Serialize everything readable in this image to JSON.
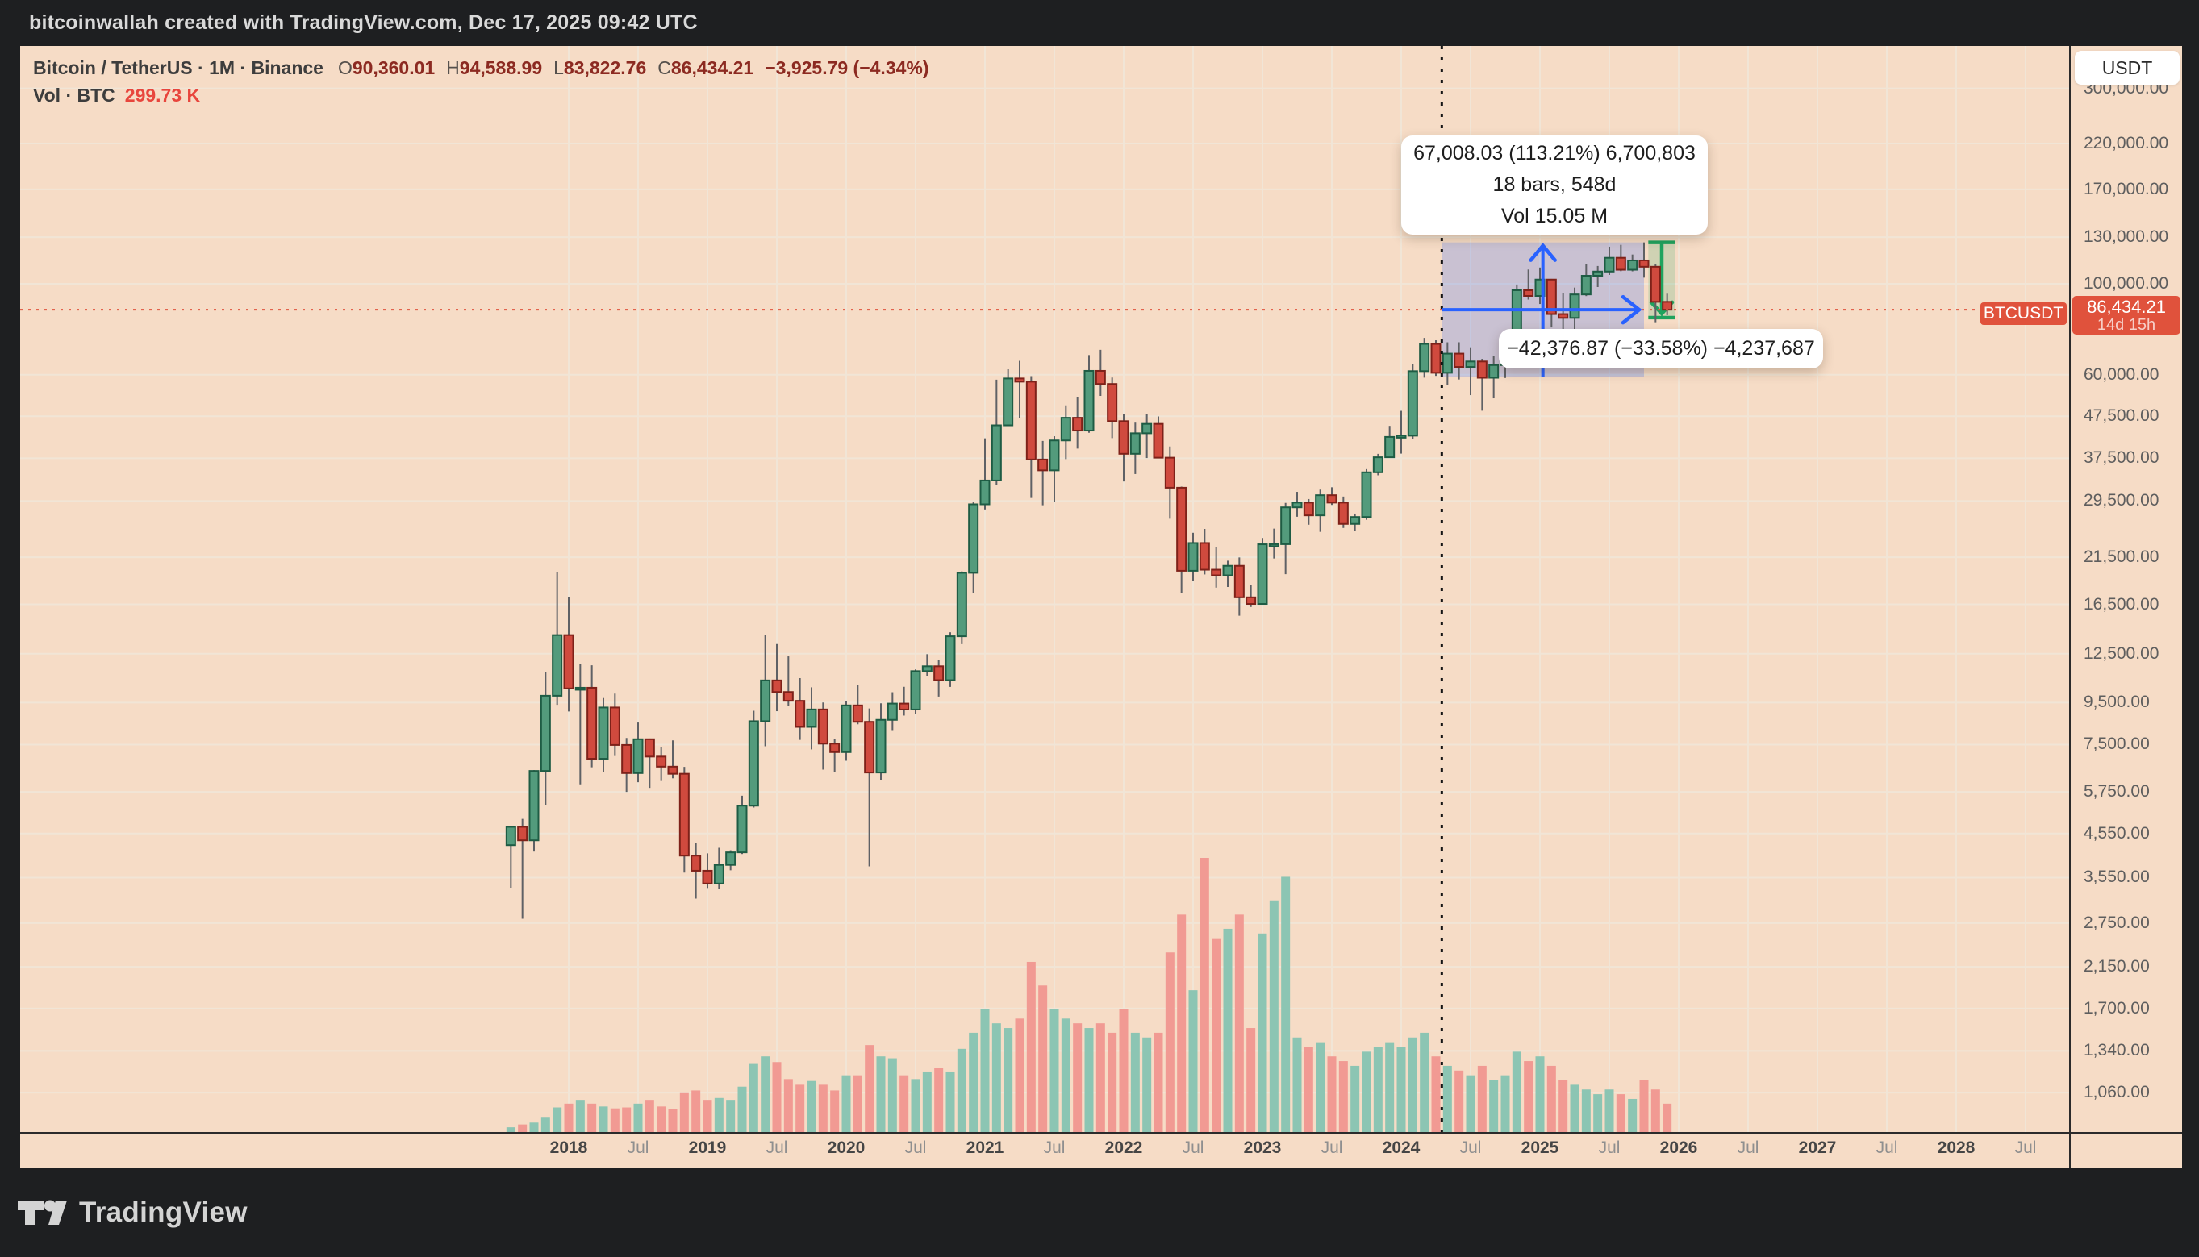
{
  "top_bar": {
    "text": "bitcoinwallah created with TradingView.com, Dec 17, 2025 09:42 UTC"
  },
  "header": {
    "symbol": "Bitcoin / TetherUS · 1M · Binance",
    "ohlc": [
      [
        "O",
        "90,360.01"
      ],
      [
        "H",
        "94,588.99"
      ],
      [
        "L",
        "83,822.76"
      ],
      [
        "C",
        "86,434.21"
      ]
    ],
    "change": "−3,925.79 (−4.34%)",
    "vol_label": "Vol · BTC",
    "vol_value": "299.73 K"
  },
  "tooltips": {
    "range_up": {
      "line1": "67,008.03 (113.21%) 6,700,803",
      "line2": "18 bars, 548d",
      "line3": "Vol 15.05 M"
    },
    "range_down": {
      "line1": "−42,376.87 (−33.58%) −4,237,687"
    }
  },
  "price_scale": {
    "currency": "USDT",
    "ticks": [
      "300,000.00",
      "220,000.00",
      "170,000.00",
      "130,000.00",
      "100,000.00",
      "60,000.00",
      "47,500.00",
      "37,500.00",
      "29,500.00",
      "21,500.00",
      "16,500.00",
      "12,500.00",
      "9,500.00",
      "7,500.00",
      "5,750.00",
      "4,550.00",
      "3,550.00",
      "2,750.00",
      "2,150.00",
      "1,700.00",
      "1,340.00",
      "1,060.00"
    ],
    "tick_values": [
      300000,
      220000,
      170000,
      130000,
      100000,
      60000,
      47500,
      37500,
      29500,
      21500,
      16500,
      12500,
      9500,
      7500,
      5750,
      4550,
      3550,
      2750,
      2150,
      1700,
      1340,
      1060
    ],
    "badge": {
      "price": "86,434.21",
      "countdown": "14d 15h"
    }
  },
  "price_line": {
    "symbol_badge": "BTCUSDT",
    "value": 86434.21
  },
  "time_axis": {
    "years": [
      2018,
      2019,
      2020,
      2021,
      2022,
      2023,
      2024,
      2025,
      2026,
      2027,
      2028
    ],
    "mid_label": "Jul"
  },
  "footer": {
    "brand": "TradingView"
  },
  "colors": {
    "background": "#f6dcc6",
    "frame": "#1e1f21",
    "grid": "#f1e5d6",
    "candle_up": "#539b7c",
    "candle_up_border": "#1e5c44",
    "candle_down": "#d04a3e",
    "candle_down_border": "#7e2119",
    "wick": "#5f6165",
    "vol_up": "#8cc5b3",
    "vol_down": "#f19a93",
    "price_line": "#e0523c",
    "measure_blue": "#2962ff",
    "measure_green": "#1fa35e",
    "dotted_line": "#141414",
    "separator": "#2b2b2b",
    "axis_text": "#5e5e5e"
  },
  "drawings": {
    "date_price_range": {
      "price_from": 59191,
      "price_to": 126199,
      "from_x_month": "2024-05",
      "to_x_month": "2025-10"
    },
    "price_range": {
      "price_from": 126199,
      "price_to": 83823,
      "over_months": [
        "2025-11",
        "2025-12"
      ]
    },
    "vertical_dotted_line_month": "2024-05"
  },
  "chart_data": {
    "type": "candlestick",
    "title": "Bitcoin / TetherUS · 1M · Binance",
    "symbol": "BTCUSDT",
    "interval": "1M",
    "exchange": "Binance",
    "log_scale": true,
    "ylabel": "Price (USDT)",
    "ylim_log": [
      980,
      330000
    ],
    "x_range": [
      "2017-08",
      "2028-12"
    ],
    "volume_unit": "thousand BTC",
    "volume_max_scale": 2900,
    "columns": [
      "month",
      "open",
      "high",
      "low",
      "close",
      "volume_kBTC"
    ],
    "candles": [
      [
        "2017-08",
        4261,
        4745,
        3355,
        4724,
        50
      ],
      [
        "2017-09",
        4724,
        4939,
        2817,
        4378,
        80
      ],
      [
        "2017-10",
        4378,
        6498,
        4110,
        6468,
        100
      ],
      [
        "2017-11",
        6468,
        11300,
        5325,
        9870,
        160
      ],
      [
        "2017-12",
        9870,
        19798,
        9380,
        13880,
        260
      ],
      [
        "2018-01",
        13880,
        17176,
        9035,
        10285,
        300
      ],
      [
        "2018-02",
        10285,
        11786,
        6000,
        10325,
        340
      ],
      [
        "2018-03",
        10325,
        11710,
        6600,
        6926,
        300
      ],
      [
        "2018-04",
        6926,
        9745,
        6430,
        9240,
        270
      ],
      [
        "2018-05",
        9240,
        9990,
        7032,
        7485,
        250
      ],
      [
        "2018-06",
        7485,
        7786,
        5750,
        6390,
        260
      ],
      [
        "2018-07",
        6390,
        8491,
        6070,
        7730,
        300
      ],
      [
        "2018-08",
        7730,
        7760,
        5880,
        7011,
        340
      ],
      [
        "2018-09",
        7011,
        7410,
        6111,
        6625,
        270
      ],
      [
        "2018-10",
        6625,
        7680,
        6205,
        6365,
        240
      ],
      [
        "2018-11",
        6365,
        6615,
        3652,
        4017,
        420
      ],
      [
        "2018-12",
        4017,
        4312,
        3156,
        3690,
        440
      ],
      [
        "2019-01",
        3690,
        4069,
        3349,
        3434,
        340
      ],
      [
        "2019-02",
        3434,
        4198,
        3331,
        3813,
        360
      ],
      [
        "2019-03",
        3813,
        4140,
        3700,
        4092,
        340
      ],
      [
        "2019-04",
        4092,
        5627,
        4054,
        5320,
        480
      ],
      [
        "2019-05",
        5320,
        9074,
        5266,
        8555,
        720
      ],
      [
        "2019-06",
        8555,
        13880,
        7430,
        10760,
        800
      ],
      [
        "2019-07",
        10760,
        13200,
        9049,
        10080,
        740
      ],
      [
        "2019-08",
        10080,
        12316,
        9320,
        9594,
        560
      ],
      [
        "2019-09",
        9594,
        10898,
        7700,
        8285,
        500
      ],
      [
        "2019-10",
        8285,
        10350,
        7300,
        9140,
        540
      ],
      [
        "2019-11",
        9140,
        9505,
        6515,
        7540,
        500
      ],
      [
        "2019-12",
        7540,
        7743,
        6425,
        7190,
        440
      ],
      [
        "2020-01",
        7190,
        9578,
        6850,
        9350,
        600
      ],
      [
        "2020-02",
        9350,
        10500,
        8407,
        8525,
        600
      ],
      [
        "2020-03",
        8525,
        9188,
        3782,
        6410,
        920
      ],
      [
        "2020-04",
        6410,
        9460,
        6153,
        8620,
        800
      ],
      [
        "2020-05",
        8620,
        10067,
        8100,
        9445,
        780
      ],
      [
        "2020-06",
        9445,
        10380,
        8830,
        9135,
        600
      ],
      [
        "2020-07",
        9135,
        11444,
        8900,
        11335,
        560
      ],
      [
        "2020-08",
        11335,
        12468,
        11010,
        11650,
        640
      ],
      [
        "2020-09",
        11650,
        12050,
        9825,
        10775,
        680
      ],
      [
        "2020-10",
        10775,
        14100,
        10374,
        13790,
        640
      ],
      [
        "2020-11",
        13790,
        19863,
        13195,
        19700,
        880
      ],
      [
        "2020-12",
        19700,
        29300,
        17572,
        28950,
        1050
      ],
      [
        "2021-01",
        28950,
        41950,
        28130,
        33100,
        1300
      ],
      [
        "2021-02",
        33100,
        58352,
        32296,
        45135,
        1150
      ],
      [
        "2021-03",
        45135,
        61844,
        44950,
        58740,
        1100
      ],
      [
        "2021-04",
        58740,
        64854,
        46930,
        57690,
        1200
      ],
      [
        "2021-05",
        57690,
        59500,
        30000,
        37250,
        1800
      ],
      [
        "2021-06",
        37250,
        41330,
        28805,
        35040,
        1550
      ],
      [
        "2021-07",
        35040,
        42448,
        29278,
        41460,
        1300
      ],
      [
        "2021-08",
        41460,
        50500,
        37332,
        47100,
        1200
      ],
      [
        "2021-09",
        47100,
        52920,
        39600,
        43820,
        1150
      ],
      [
        "2021-10",
        43820,
        67000,
        43283,
        61300,
        1100
      ],
      [
        "2021-11",
        61300,
        69000,
        53256,
        56950,
        1150
      ],
      [
        "2021-12",
        56950,
        59053,
        42000,
        46210,
        1050
      ],
      [
        "2022-01",
        46210,
        47990,
        32917,
        38460,
        1300
      ],
      [
        "2022-02",
        38460,
        45821,
        34322,
        43160,
        1050
      ],
      [
        "2022-03",
        43160,
        48190,
        37555,
        45510,
        1000
      ],
      [
        "2022-04",
        45510,
        47444,
        37702,
        37630,
        1050
      ],
      [
        "2022-05",
        37630,
        40071,
        26700,
        31780,
        1900
      ],
      [
        "2022-06",
        31780,
        31980,
        17622,
        19925,
        2300
      ],
      [
        "2022-07",
        19925,
        24668,
        18780,
        23293,
        1500
      ],
      [
        "2022-08",
        23293,
        25211,
        19520,
        20048,
        2900
      ],
      [
        "2022-09",
        20048,
        22799,
        18125,
        19424,
        2050
      ],
      [
        "2022-10",
        19424,
        21085,
        18190,
        20489,
        2150
      ],
      [
        "2022-11",
        20489,
        21480,
        15476,
        17163,
        2300
      ],
      [
        "2022-12",
        17163,
        18387,
        16256,
        16537,
        1100
      ],
      [
        "2023-01",
        16537,
        23960,
        16499,
        23125,
        2100
      ],
      [
        "2023-02",
        23125,
        25250,
        21351,
        23141,
        2450
      ],
      [
        "2023-03",
        23141,
        29184,
        19549,
        28465,
        2700
      ],
      [
        "2023-04",
        28465,
        31050,
        27000,
        29233,
        1000
      ],
      [
        "2023-05",
        29233,
        29820,
        25811,
        27210,
        900
      ],
      [
        "2023-06",
        27210,
        31443,
        24797,
        30472,
        950
      ],
      [
        "2023-07",
        30472,
        31862,
        28855,
        29230,
        800
      ],
      [
        "2023-08",
        29230,
        30242,
        25350,
        25932,
        750
      ],
      [
        "2023-09",
        25932,
        27483,
        24900,
        26962,
        700
      ],
      [
        "2023-10",
        26962,
        35280,
        26538,
        34656,
        850
      ],
      [
        "2023-11",
        34656,
        38450,
        34083,
        37718,
        900
      ],
      [
        "2023-12",
        37718,
        45000,
        37615,
        42283,
        950
      ],
      [
        "2024-01",
        42283,
        48969,
        38501,
        42580,
        900
      ],
      [
        "2024-02",
        42580,
        63585,
        41884,
        61198,
        1000
      ],
      [
        "2024-03",
        61198,
        73777,
        59005,
        71333,
        1050
      ],
      [
        "2024-04",
        71333,
        72797,
        59600,
        60636,
        800
      ],
      [
        "2024-05",
        60636,
        71979,
        56500,
        67540,
        700
      ],
      [
        "2024-06",
        67540,
        71997,
        58400,
        62678,
        650
      ],
      [
        "2024-07",
        62678,
        70000,
        53485,
        64628,
        600
      ],
      [
        "2024-08",
        64628,
        65593,
        49000,
        58969,
        700
      ],
      [
        "2024-09",
        58969,
        66500,
        52530,
        63329,
        550
      ],
      [
        "2024-10",
        63329,
        73620,
        58900,
        70215,
        600
      ],
      [
        "2024-11",
        70215,
        99588,
        66835,
        96449,
        850
      ],
      [
        "2024-12",
        96449,
        108353,
        91530,
        93429,
        750
      ],
      [
        "2025-01",
        93429,
        109588,
        89256,
        102405,
        800
      ],
      [
        "2025-02",
        102405,
        102780,
        78258,
        84349,
        700
      ],
      [
        "2025-03",
        84349,
        95000,
        76606,
        82548,
        550
      ],
      [
        "2025-04",
        82548,
        97895,
        74420,
        94207,
        500
      ],
      [
        "2025-05",
        94207,
        111980,
        93341,
        104634,
        450
      ],
      [
        "2025-06",
        104634,
        110530,
        98200,
        107135,
        400
      ],
      [
        "2025-07",
        107135,
        123218,
        105111,
        115758,
        450
      ],
      [
        "2025-08",
        115758,
        124474,
        107350,
        108236,
        400
      ],
      [
        "2025-09",
        108236,
        117900,
        107260,
        114056,
        350
      ],
      [
        "2025-10",
        114056,
        126199,
        103530,
        110067,
        550
      ],
      [
        "2025-11",
        110067,
        112000,
        80600,
        90360,
        450
      ],
      [
        "2025-12",
        90360.01,
        94588.99,
        83822.76,
        86434.21,
        299.73
      ]
    ]
  }
}
